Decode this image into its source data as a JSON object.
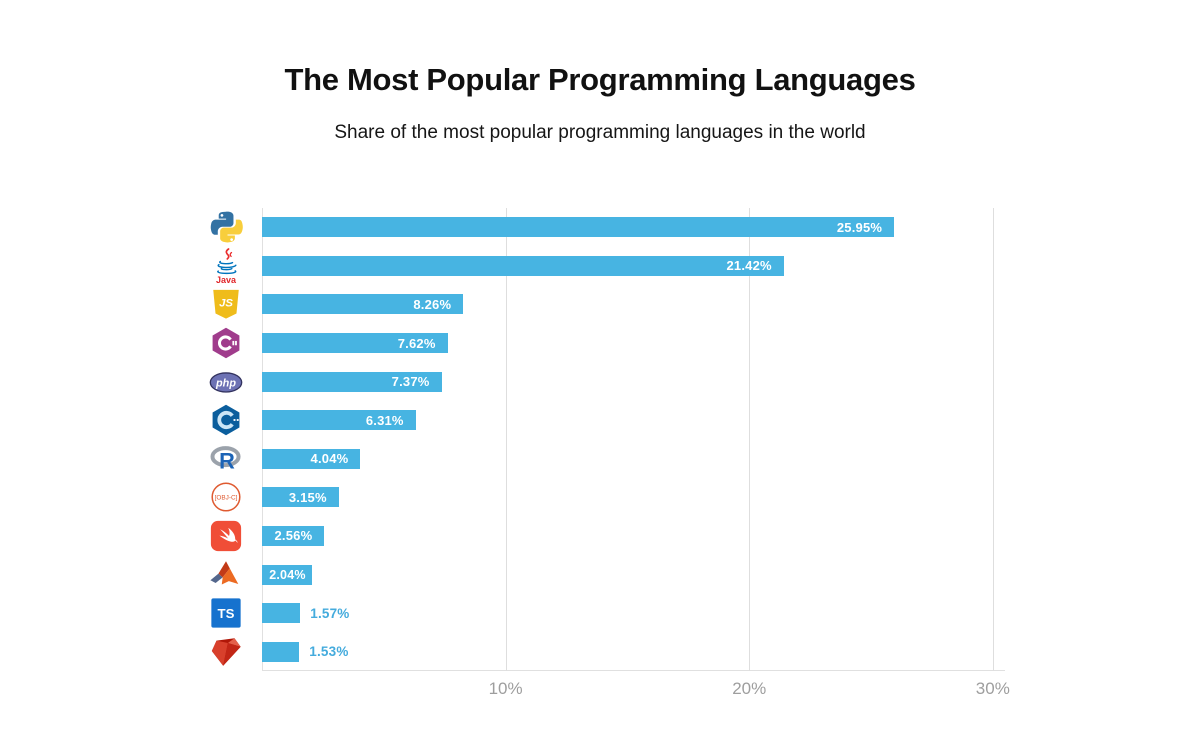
{
  "header": {
    "title": "The Most Popular Programming Languages",
    "subtitle": "Share of the most popular programming languages in the world"
  },
  "chart_data": {
    "type": "bar",
    "orientation": "horizontal",
    "title": "The Most Popular Programming Languages",
    "subtitle": "Share of the most popular programming languages in the world",
    "categories": [
      "Python",
      "Java",
      "JavaScript",
      "C#",
      "PHP",
      "C++",
      "R",
      "Objective-C",
      "Swift",
      "MATLAB",
      "TypeScript",
      "Ruby"
    ],
    "values": [
      25.95,
      21.42,
      8.26,
      7.62,
      7.37,
      6.31,
      4.04,
      3.15,
      2.56,
      2.04,
      1.57,
      1.53
    ],
    "labels": [
      "25.95%",
      "21.42%",
      "8.26%",
      "7.62%",
      "7.37%",
      "6.31%",
      "4.04%",
      "3.15%",
      "2.56%",
      "2.04%",
      "1.57%",
      "1.53%"
    ],
    "label_positions": [
      "inside",
      "inside",
      "inside",
      "inside",
      "inside",
      "inside",
      "inside",
      "inside",
      "inside",
      "inside",
      "outside",
      "outside"
    ],
    "icons": [
      "python-icon",
      "java-icon",
      "javascript-icon",
      "csharp-icon",
      "php-icon",
      "cpp-icon",
      "r-icon",
      "objective-c-icon",
      "swift-icon",
      "matlab-icon",
      "typescript-icon",
      "ruby-icon"
    ],
    "x_ticks": [
      {
        "label": "10%",
        "value": 10
      },
      {
        "label": "20%",
        "value": 20
      },
      {
        "label": "30%",
        "value": 30
      }
    ],
    "xlim": [
      0,
      30.5
    ],
    "grid": "vertical-only",
    "legend": "none",
    "colors": {
      "bar": "#47b4e2",
      "inside_label": "#ffffff",
      "outside_label": "#44abdd",
      "grid_line": "#dedede",
      "axis_line": "#e0e0e0",
      "tick_label": "#9e9e9e",
      "title": "#111111",
      "background": "#ffffff"
    }
  }
}
